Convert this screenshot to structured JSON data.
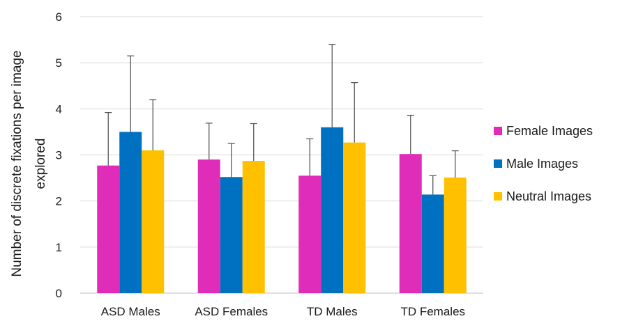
{
  "chart_data": {
    "type": "bar",
    "title": "",
    "xlabel": "",
    "ylabel_lines": [
      "Number of discrete fixations per image",
      "explored"
    ],
    "ylim": [
      0,
      6
    ],
    "yticks": [
      0,
      1,
      2,
      3,
      4,
      5,
      6
    ],
    "grid": true,
    "legend_position": "right",
    "categories": [
      "ASD Males",
      "ASD Females",
      "TD Males",
      "TD Females"
    ],
    "series": [
      {
        "name": "Female Images",
        "color": "#E02DB9",
        "values": [
          2.77,
          2.9,
          2.55,
          3.02
        ],
        "error_upper": [
          3.92,
          3.69,
          3.35,
          3.86
        ]
      },
      {
        "name": "Male Images",
        "color": "#0070C0",
        "values": [
          3.5,
          2.52,
          3.6,
          2.14
        ],
        "error_upper": [
          5.15,
          3.25,
          5.4,
          2.55
        ]
      },
      {
        "name": "Neutral Images",
        "color": "#FFC000",
        "values": [
          3.1,
          2.87,
          3.27,
          2.51
        ],
        "error_upper": [
          4.2,
          3.68,
          4.57,
          3.09
        ]
      }
    ]
  }
}
